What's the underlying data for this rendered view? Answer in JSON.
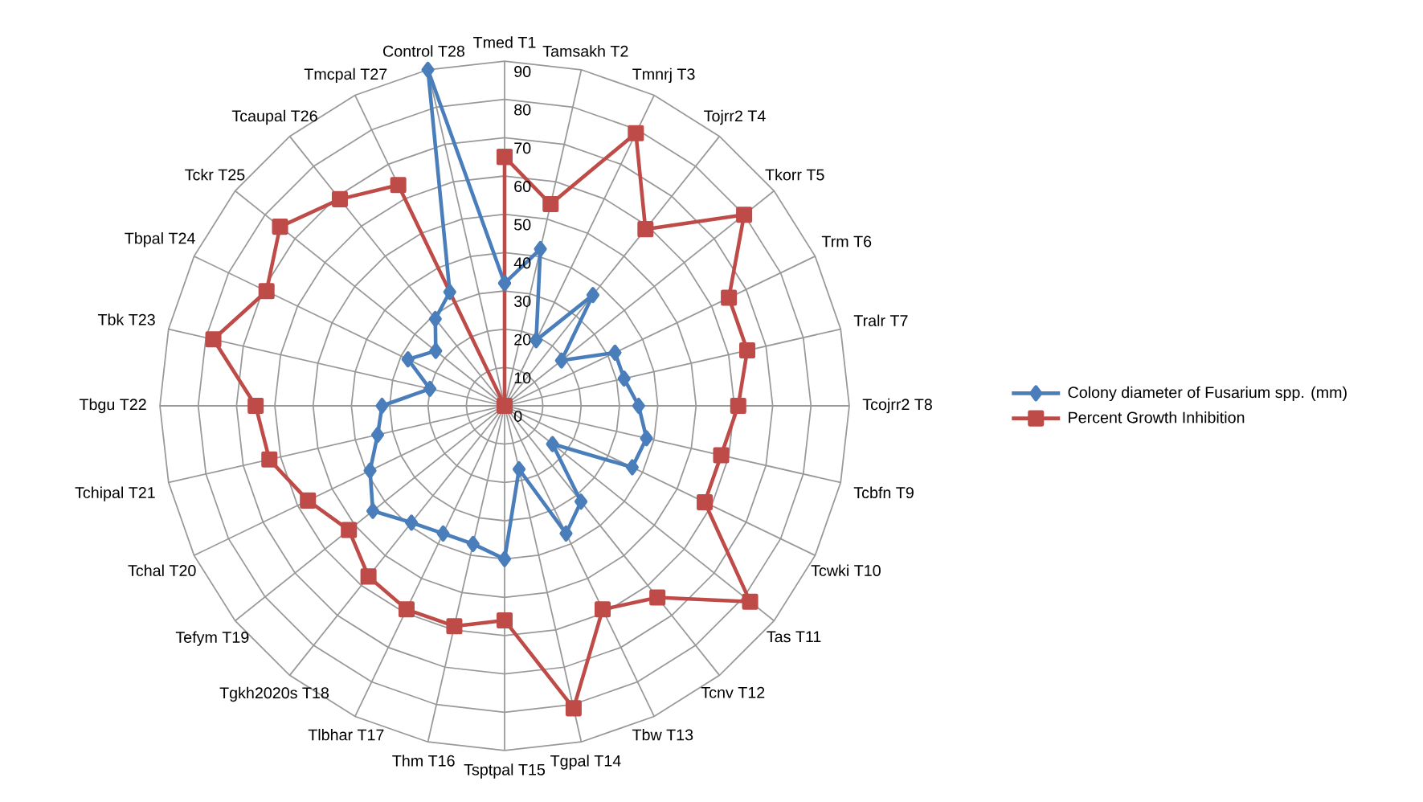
{
  "chart_data": {
    "type": "radar",
    "categories": [
      "Tmed  T1",
      "Tamsakh T2",
      "Tmnrj T3",
      "Tojrr2 T4",
      "Tkorr T5",
      "Trm T6",
      "Tralr T7",
      "Tcojrr2 T8",
      "Tcbfn T9",
      "Tcwki  T10",
      "Tas T11",
      "Tcnv T12",
      "Tbw T13",
      "Tgpal T14",
      "Tsptpal T15",
      "Thm T16",
      "Tlbhar T17",
      "Tgkh2020s T18",
      "Tefym T19",
      "Tchal T20",
      "Tchipal T21",
      "Tbgu T22",
      "Tbk T23",
      "Tbpal T24",
      "Tckr T25",
      "Tcaupal T26",
      "Tmcpal  T27",
      "Control T28"
    ],
    "series": [
      {
        "name": "Colony diameter of Fusarium spp. (mm)",
        "color": "#4a7ebb",
        "marker": "diamond",
        "values": [
          32,
          42,
          19,
          37,
          19,
          32,
          32,
          35,
          38,
          37,
          16,
          32,
          37,
          17,
          40,
          37,
          37,
          39,
          44,
          39,
          34,
          32,
          20,
          28,
          23,
          29,
          33,
          90
        ]
      },
      {
        "name": "Percent Growth Inhibition",
        "color": "#be4b48",
        "marker": "square",
        "values": [
          65,
          54,
          79,
          59,
          80,
          65,
          65,
          61,
          58,
          58,
          82,
          64,
          59,
          81,
          56,
          59,
          59,
          57,
          52,
          57,
          63,
          65,
          78,
          69,
          75,
          69,
          64,
          0
        ]
      }
    ],
    "ylim": [
      0,
      90
    ],
    "yticks": [
      0,
      10,
      20,
      30,
      40,
      50,
      60,
      70,
      80,
      90
    ],
    "grid": true,
    "legend": "right"
  }
}
